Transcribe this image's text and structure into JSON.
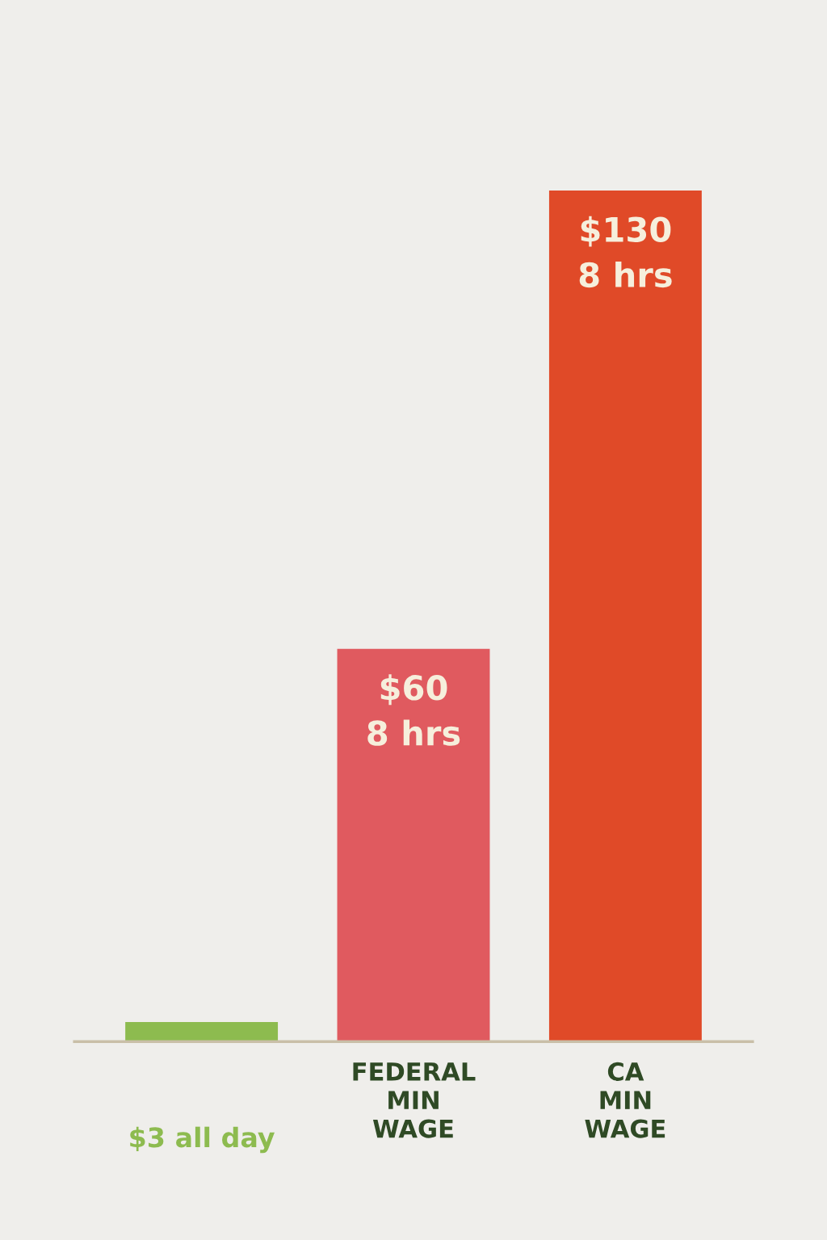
{
  "chart_data": {
    "type": "bar",
    "categories": [
      null,
      "FEDERAL\nMIN\nWAGE",
      "CA\nMIN\nWAGE"
    ],
    "values": [
      3,
      60,
      130
    ],
    "colors": [
      "#8dbb4f",
      "#e05a5f",
      "#e04a28"
    ],
    "value_labels": [
      "$3 all day",
      "$60\n8 hrs",
      "$130\n8 hrs"
    ],
    "grid": false,
    "legend": false
  }
}
